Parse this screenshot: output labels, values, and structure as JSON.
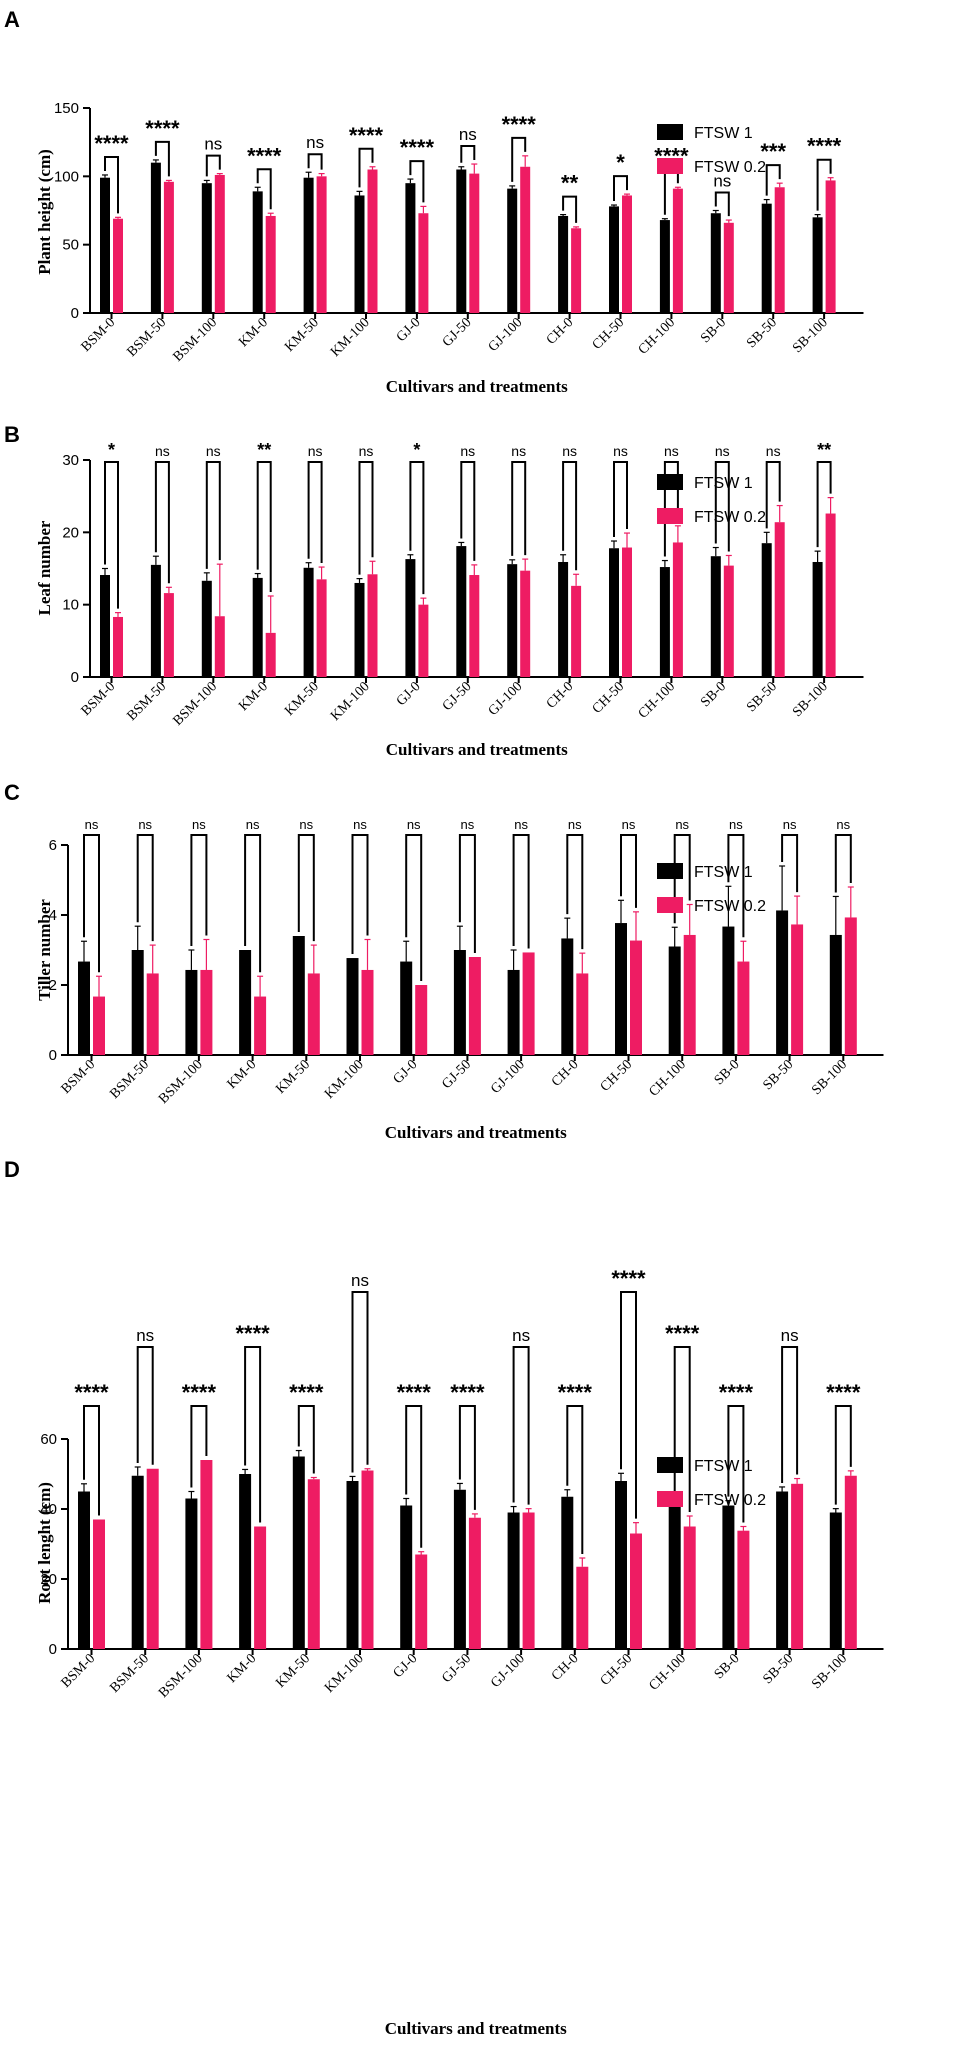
{
  "legend": {
    "series1": "FTSW 1",
    "series2": "FTSW 0.2"
  },
  "colors": {
    "series1": "#000000",
    "series2": "#ee1c63",
    "axis": "#000000"
  },
  "chart_data": [
    {
      "panel": "A",
      "type": "bar",
      "xlabel": "Cultivars and treatments",
      "ylabel": "Plant height (cm)",
      "ylim": [
        0,
        150
      ],
      "yticks": [
        0,
        50,
        100,
        150
      ],
      "categories": [
        "BSM-0",
        "BSM-50",
        "BSM-100",
        "KM-0",
        "KM-50",
        "KM-100",
        "GJ-0",
        "GJ-50",
        "GJ-100",
        "CH-0",
        "CH-50",
        "CH-100",
        "SB-0",
        "SB-50",
        "SB-100"
      ],
      "series": [
        {
          "name": "FTSW 1",
          "values": [
            99,
            110,
            95,
            89,
            99,
            86,
            95,
            105,
            91,
            71,
            78,
            68,
            73,
            80,
            70
          ],
          "errors": [
            2,
            2,
            2,
            3,
            4,
            3,
            3,
            2,
            2,
            1,
            1,
            1,
            2,
            3,
            2
          ]
        },
        {
          "name": "FTSW 0.2",
          "values": [
            69,
            96,
            101,
            71,
            100,
            105,
            73,
            102,
            107,
            62,
            86,
            91,
            66,
            92,
            97
          ],
          "errors": [
            1,
            1,
            1,
            2,
            2,
            2,
            5,
            7,
            8,
            1,
            1,
            1,
            2,
            3,
            2
          ]
        }
      ],
      "significance": [
        "****",
        "****",
        "ns",
        "****",
        "ns",
        "****",
        "****",
        "ns",
        "****",
        "**",
        "*",
        "****",
        "ns",
        "***",
        "****"
      ]
    },
    {
      "panel": "B",
      "type": "bar",
      "xlabel": "Cultivars and treatments",
      "ylabel": "Leaf number",
      "ylim": [
        0,
        30
      ],
      "yticks": [
        0,
        10,
        20,
        30
      ],
      "categories": [
        "BSM-0",
        "BSM-50",
        "BSM-100",
        "KM-0",
        "KM-50",
        "KM-100",
        "GJ-0",
        "GJ-50",
        "GJ-100",
        "CH-0",
        "CH-50",
        "CH-100",
        "SB-0",
        "SB-50",
        "SB-100"
      ],
      "series": [
        {
          "name": "FTSW 1",
          "values": [
            14.1,
            15.5,
            13.3,
            13.7,
            15.1,
            13.0,
            16.3,
            18.1,
            15.6,
            15.9,
            17.8,
            15.2,
            16.7,
            18.5,
            15.9
          ],
          "errors": [
            0.9,
            1.2,
            1.1,
            0.6,
            0.7,
            0.6,
            0.6,
            0.5,
            0.6,
            1.0,
            1.0,
            0.9,
            1.2,
            1.5,
            1.5
          ]
        },
        {
          "name": "FTSW 0.2",
          "values": [
            8.3,
            11.6,
            8.4,
            6.1,
            13.5,
            14.2,
            10.0,
            14.1,
            14.7,
            12.6,
            17.9,
            18.6,
            15.4,
            21.4,
            22.6
          ],
          "errors": [
            0.6,
            0.8,
            7.2,
            5.1,
            1.7,
            1.8,
            0.9,
            1.4,
            1.6,
            1.6,
            2.0,
            2.3,
            1.4,
            2.3,
            2.2
          ]
        }
      ],
      "significance": [
        "*",
        "ns",
        "ns",
        "**",
        "ns",
        "ns",
        "*",
        "ns",
        "ns",
        "ns",
        "ns",
        "ns",
        "ns",
        "ns",
        "**"
      ]
    },
    {
      "panel": "C",
      "type": "bar",
      "xlabel": "Cultivars and treatments",
      "ylabel": "Tiller number",
      "ylim": [
        0,
        6
      ],
      "yticks": [
        0,
        2,
        4,
        6
      ],
      "categories": [
        "BSM-0",
        "BSM-50",
        "BSM-100",
        "KM-0",
        "KM-50",
        "KM-100",
        "GJ-0",
        "GJ-50",
        "GJ-100",
        "CH-0",
        "CH-50",
        "CH-100",
        "SB-0",
        "SB-50",
        "SB-100"
      ],
      "series": [
        {
          "name": "FTSW 1",
          "values": [
            2.67,
            3.0,
            2.43,
            3.0,
            3.4,
            2.77,
            2.67,
            3.0,
            2.43,
            3.33,
            3.77,
            3.1,
            3.67,
            4.13,
            3.43
          ],
          "errors": [
            0.58,
            0.68,
            0.57,
            0,
            0,
            0,
            0.58,
            0.68,
            0.57,
            0.58,
            0.65,
            0.55,
            1.15,
            1.27,
            1.1
          ]
        },
        {
          "name": "FTSW 0.2",
          "values": [
            1.67,
            2.33,
            2.43,
            1.67,
            2.33,
            2.43,
            2.0,
            2.8,
            2.93,
            2.33,
            3.27,
            3.43,
            2.67,
            3.73,
            3.93
          ],
          "errors": [
            0.58,
            0.81,
            0.87,
            0.58,
            0.81,
            0.87,
            0,
            0,
            0,
            0.58,
            0.82,
            0.87,
            0.58,
            0.81,
            0.87
          ]
        }
      ],
      "significance": [
        "ns",
        "ns",
        "ns",
        "ns",
        "ns",
        "ns",
        "ns",
        "ns",
        "ns",
        "ns",
        "ns",
        "ns",
        "ns",
        "ns",
        "ns"
      ]
    },
    {
      "panel": "D",
      "type": "bar",
      "xlabel": "Cultivars and treatments",
      "ylabel": "Root lenght (cm)",
      "ylim": [
        0,
        60
      ],
      "yticks": [
        0,
        20,
        40,
        60
      ],
      "categories": [
        "BSM-0",
        "BSM-50",
        "BSM-100",
        "KM-0",
        "KM-50",
        "KM-100",
        "GJ-0",
        "GJ-50",
        "GJ-100",
        "CH-0",
        "CH-50",
        "CH-100",
        "SB-0",
        "SB-50",
        "SB-100"
      ],
      "series": [
        {
          "name": "FTSW 1",
          "values": [
            45,
            49.5,
            43,
            50,
            55,
            48,
            41,
            45.5,
            39,
            43.5,
            48,
            41.5,
            41,
            45,
            39
          ],
          "errors": [
            2.2,
            2.5,
            2,
            1.3,
            1.7,
            1.3,
            2,
            1.8,
            1.7,
            2,
            2.2,
            2.1,
            1.4,
            1.3,
            1.1
          ]
        },
        {
          "name": "FTSW 0.2",
          "values": [
            37,
            51.5,
            54,
            35,
            48.5,
            51,
            27,
            37.5,
            39,
            23.5,
            33,
            35,
            33.8,
            47.2,
            49.5
          ],
          "errors": [
            0,
            0,
            0,
            0,
            0.5,
            0.5,
            0.8,
            1.1,
            1.1,
            2.5,
            3.1,
            3,
            1.2,
            1.5,
            1.4
          ]
        }
      ],
      "significance": [
        "****",
        "ns",
        "****",
        "****",
        "****",
        "ns",
        "****",
        "****",
        "ns",
        "****",
        "****",
        "****",
        "****",
        "ns",
        "****"
      ]
    }
  ]
}
